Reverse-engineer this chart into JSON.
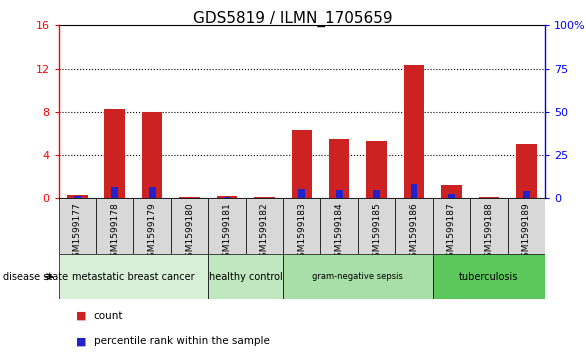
{
  "title": "GDS5819 / ILMN_1705659",
  "samples": [
    "GSM1599177",
    "GSM1599178",
    "GSM1599179",
    "GSM1599180",
    "GSM1599181",
    "GSM1599182",
    "GSM1599183",
    "GSM1599184",
    "GSM1599185",
    "GSM1599186",
    "GSM1599187",
    "GSM1599188",
    "GSM1599189"
  ],
  "count_values": [
    0.3,
    8.2,
    8.0,
    0.05,
    0.15,
    0.05,
    6.3,
    5.5,
    5.3,
    12.3,
    1.2,
    0.05,
    5.0
  ],
  "percentile_values": [
    1.0,
    6.5,
    6.2,
    0.05,
    0.7,
    0.05,
    5.0,
    4.7,
    4.5,
    8.0,
    2.0,
    0.05,
    4.2
  ],
  "left_ylim": [
    0,
    16
  ],
  "left_yticks": [
    0,
    4,
    8,
    12,
    16
  ],
  "right_ylim": [
    0,
    100
  ],
  "right_yticks": [
    0,
    25,
    50,
    75,
    100
  ],
  "right_yticklabels": [
    "0",
    "25",
    "50",
    "75",
    "100%"
  ],
  "count_color": "#cc2222",
  "percentile_color": "#2222cc",
  "red_bar_width": 0.55,
  "blue_bar_width": 0.18,
  "disease_groups": [
    {
      "label": "metastatic breast cancer",
      "start": 0,
      "end": 3,
      "color": "#d8f0d8"
    },
    {
      "label": "healthy control",
      "start": 4,
      "end": 5,
      "color": "#c0e8c0"
    },
    {
      "label": "gram-negative sepsis",
      "start": 6,
      "end": 9,
      "color": "#a8dfa8"
    },
    {
      "label": "tuberculosis",
      "start": 10,
      "end": 12,
      "color": "#5cc85c"
    }
  ],
  "tick_bg_color": "#d8d8d8",
  "background_color": "#ffffff",
  "legend_count_label": "count",
  "legend_percentile_label": "percentile rank within the sample",
  "disease_state_label": "disease state"
}
